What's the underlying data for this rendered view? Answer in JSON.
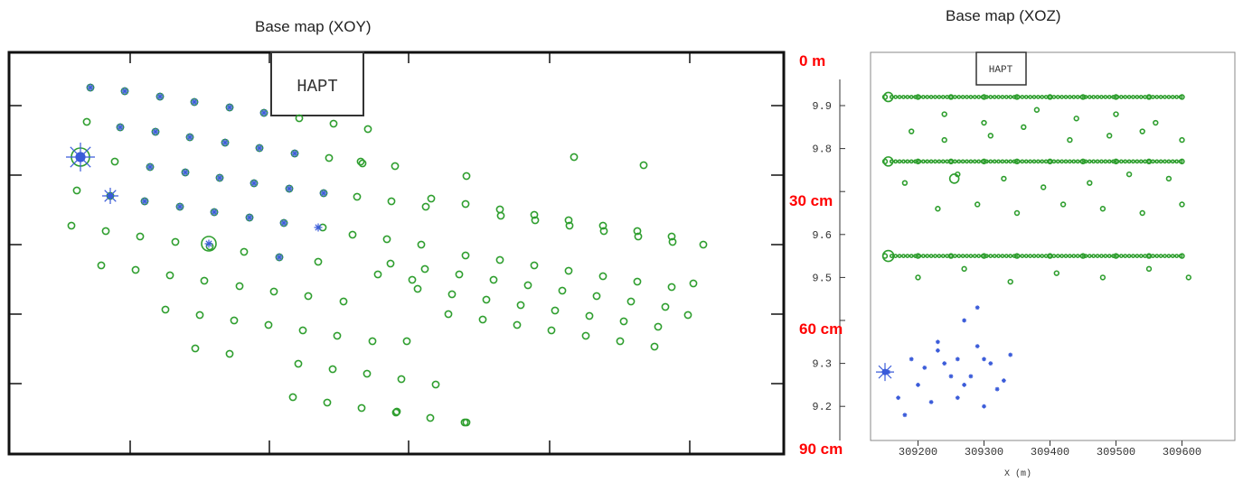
{
  "chart_data": [
    {
      "type": "scatter",
      "title": "Base map (XOY)",
      "box_label": "HAPT",
      "series": [
        {
          "color": "#2e9e2e",
          "marker": "circle",
          "x": [
            100,
            138,
            177,
            215,
            254,
            292,
            331,
            369,
            407,
            96,
            133,
            172,
            210,
            249,
            287,
            326,
            364,
            401,
            89,
            127,
            166,
            205,
            243,
            281,
            320,
            358,
            399,
            437,
            85,
            122,
            160,
            199,
            237,
            276,
            314,
            357,
            395,
            433,
            471,
            79,
            117,
            155,
            194,
            232,
            270,
            309,
            352,
            390,
            428,
            466,
            112,
            150,
            188,
            226,
            265,
            303,
            341,
            380,
            418,
            456,
            183,
            221,
            259,
            297,
            335,
            373,
            412,
            450,
            216,
            254,
            330,
            368,
            406,
            444,
            482,
            324,
            362,
            400,
            438,
            476,
            514,
            439,
            516,
            516,
            554,
            592,
            630,
            668,
            706,
            744,
            477,
            515,
            553,
            591,
            629,
            667,
            705,
            743,
            515,
            553,
            591,
            629,
            667,
            705,
            743,
            778,
            496,
            534,
            572,
            610,
            648,
            686,
            724,
            761,
            462,
            500,
            538,
            576,
            614,
            652,
            690,
            728,
            767,
            432,
            470,
            508,
            546,
            584,
            622,
            660,
            698,
            736,
            712,
            635
          ],
          "y": [
            97,
            101,
            107,
            113,
            119,
            125,
            131,
            137,
            143,
            135,
            141,
            146,
            152,
            158,
            164,
            170,
            175,
            181,
            174,
            179,
            185,
            191,
            197,
            203,
            209,
            214,
            179,
            184,
            211,
            217,
            223,
            229,
            235,
            241,
            247,
            252,
            218,
            223,
            229,
            250,
            256,
            262,
            268,
            273,
            279,
            285,
            290,
            260,
            265,
            271,
            294,
            299,
            305,
            311,
            317,
            323,
            328,
            334,
            304,
            310,
            343,
            349,
            355,
            360,
            366,
            372,
            378,
            378,
            386,
            392,
            403,
            409,
            414,
            420,
            426,
            440,
            446,
            452,
            457,
            463,
            468,
            456,
            195,
            468,
            239,
            244,
            250,
            256,
            262,
            268,
            220,
            226,
            232,
            238,
            244,
            250,
            256,
            262,
            283,
            288,
            294,
            300,
            306,
            312,
            318,
            271,
            348,
            354,
            360,
            366,
            372,
            378,
            384,
            349,
            320,
            326,
            332,
            338,
            344,
            350,
            356,
            362,
            314,
            292,
            298,
            304,
            310,
            316,
            322,
            328,
            334,
            340,
            183,
            174
          ]
        },
        {
          "color": "#3a5bd9",
          "marker": "star",
          "x": [
            100,
            138,
            177,
            215,
            254,
            292,
            133,
            172,
            210,
            249,
            287,
            326,
            166,
            205,
            243,
            281,
            320,
            358,
            160,
            199,
            237,
            276,
            314,
            352,
            309,
            231,
            122,
            89
          ],
          "y": [
            97,
            101,
            107,
            113,
            119,
            125,
            141,
            146,
            152,
            158,
            164,
            170,
            185,
            191,
            197,
            203,
            209,
            214,
            223,
            229,
            235,
            241,
            247,
            252,
            285,
            270,
            217,
            174
          ]
        }
      ]
    },
    {
      "type": "scatter",
      "title": "Base map (XOZ)",
      "box_label": "HAPT",
      "xlabel": "X  (m)",
      "x_ticks": [
        "309200",
        "309300",
        "309400",
        "309500",
        "309600"
      ],
      "y_ticks": [
        "9.9",
        "9.8",
        "9.6",
        "9.5",
        "9.3",
        "9.2"
      ],
      "depth_labels": [
        "0 m",
        "30 cm",
        "60 cm",
        "90 cm"
      ],
      "series": [
        {
          "color": "#2e9e2e",
          "marker": "circle",
          "x": [
            309150,
            309200,
            309250,
            309300,
            309350,
            309400,
            309450,
            309500,
            309550,
            309600,
            309240,
            309300,
            309380,
            309440,
            309500,
            309560,
            309190,
            309240,
            309310,
            309360,
            309430,
            309490,
            309540,
            309600,
            309150,
            309200,
            309250,
            309300,
            309350,
            309400,
            309450,
            309500,
            309550,
            309600,
            309180,
            309260,
            309330,
            309390,
            309460,
            309520,
            309580,
            309230,
            309290,
            309350,
            309420,
            309480,
            309540,
            309600,
            309150,
            309200,
            309250,
            309300,
            309350,
            309400,
            309450,
            309500,
            309550,
            309600,
            309200,
            309270,
            309340,
            309410,
            309480,
            309550,
            309610
          ],
          "y": [
            9.92,
            9.92,
            9.92,
            9.92,
            9.92,
            9.92,
            9.92,
            9.92,
            9.92,
            9.92,
            9.88,
            9.86,
            9.89,
            9.87,
            9.88,
            9.86,
            9.84,
            9.82,
            9.83,
            9.85,
            9.82,
            9.83,
            9.84,
            9.82,
            9.77,
            9.77,
            9.77,
            9.77,
            9.77,
            9.77,
            9.77,
            9.77,
            9.77,
            9.77,
            9.72,
            9.74,
            9.73,
            9.71,
            9.72,
            9.74,
            9.73,
            9.66,
            9.67,
            9.65,
            9.67,
            9.66,
            9.65,
            9.67,
            9.55,
            9.55,
            9.55,
            9.55,
            9.55,
            9.55,
            9.55,
            9.55,
            9.55,
            9.55,
            9.5,
            9.52,
            9.49,
            9.51,
            9.5,
            9.52,
            9.5
          ]
        },
        {
          "color": "#3a5bd9",
          "marker": "star",
          "x": [
            309155,
            309170,
            309190,
            309210,
            309230,
            309250,
            309270,
            309290,
            309310,
            309330,
            309200,
            309220,
            309240,
            309260,
            309280,
            309300,
            309320,
            309180,
            309230,
            309270,
            309300,
            309260,
            309290,
            309340
          ],
          "y": [
            9.28,
            9.22,
            9.31,
            9.29,
            9.33,
            9.27,
            9.25,
            9.34,
            9.3,
            9.26,
            9.25,
            9.21,
            9.3,
            9.22,
            9.27,
            9.2,
            9.24,
            9.18,
            9.35,
            9.4,
            9.31,
            9.31,
            9.43,
            9.32
          ]
        }
      ]
    }
  ]
}
